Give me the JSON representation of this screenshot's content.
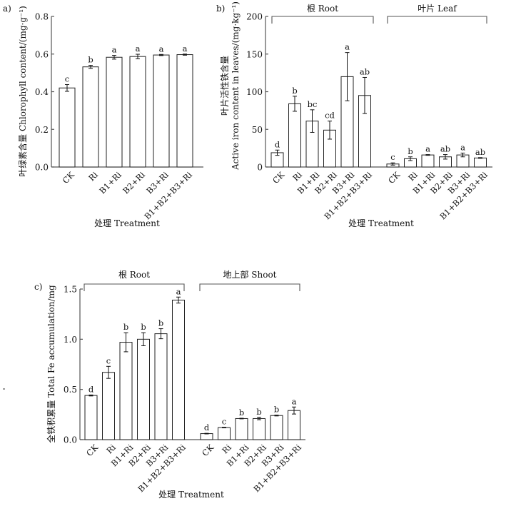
{
  "chart_data": [
    {
      "type": "bar",
      "panel_label": "a)",
      "title": "",
      "xlabel": "处理 Treatment",
      "ylabel": "叶绿素含量 Chlorophyll content/(mg·g⁻¹)",
      "ylim": [
        0,
        0.8
      ],
      "yticks": [
        "0.0",
        "0.2",
        "0.4",
        "0.6",
        "0.8"
      ],
      "ytick_values": [
        0,
        0.2,
        0.4,
        0.6,
        0.8
      ],
      "groups": [
        {
          "name": "",
          "categories": [
            "CK",
            "Ri",
            "B1+Ri",
            "B2+Ri",
            "B3+Ri",
            "B1+B2+B3+Ri"
          ],
          "values": [
            0.42,
            0.532,
            0.583,
            0.587,
            0.595,
            0.597
          ],
          "errors": [
            0.018,
            0.008,
            0.01,
            0.012,
            0.003,
            0.003
          ],
          "significance": [
            "c",
            "b",
            "a",
            "a",
            "a",
            "a"
          ]
        }
      ]
    },
    {
      "type": "bar",
      "panel_label": "b)",
      "title": "",
      "xlabel": "处理 Treatment",
      "ylabel_line1": "叶片活性铁含量",
      "ylabel_line2": "Active iron content in leaves/(mg·kg⁻¹)",
      "ylim": [
        0,
        200
      ],
      "yticks": [
        "0",
        "50",
        "100",
        "150",
        "200"
      ],
      "ytick_values": [
        0,
        50,
        100,
        150,
        200
      ],
      "groups": [
        {
          "name": "根 Root",
          "categories": [
            "CK",
            "Ri",
            "B1+Ri",
            "B2+Ri",
            "B3+Ri",
            "B1+B2+B3+Ri"
          ],
          "values": [
            19,
            84,
            61,
            49,
            120,
            95
          ],
          "errors": [
            3.5,
            10,
            15,
            12,
            32,
            24
          ],
          "significance": [
            "d",
            "b",
            "bc",
            "cd",
            "a",
            "ab"
          ]
        },
        {
          "name": "叶片 Leaf",
          "categories": [
            "CK",
            "Ri",
            "B1+Ri",
            "B2+Ri",
            "B3+Ri",
            "B1+B2+B3+Ri"
          ],
          "values": [
            4,
            11,
            16,
            13.5,
            16,
            12
          ],
          "errors": [
            1.5,
            2.5,
            0.5,
            3,
            2.5,
            0.5
          ],
          "significance": [
            "c",
            "b",
            "a",
            "ab",
            "a",
            "ab"
          ]
        }
      ]
    },
    {
      "type": "bar",
      "panel_label": "c)",
      "title": "",
      "xlabel": "处理 Treatment",
      "ylabel": "全铁积累量 Total Fe accumulation/mg",
      "ylim": [
        0,
        1.5
      ],
      "yticks": [
        "0.0",
        "0.5",
        "1.0",
        "1.5"
      ],
      "ytick_values": [
        0,
        0.5,
        1.0,
        1.5
      ],
      "groups": [
        {
          "name": "根 Root",
          "categories": [
            "CK",
            "Ri",
            "B1+Ri",
            "B2+Ri",
            "B3+Ri",
            "B1+B2+B3+Ri"
          ],
          "values": [
            0.44,
            0.67,
            0.97,
            1.0,
            1.055,
            1.39
          ],
          "errors": [
            0.005,
            0.06,
            0.095,
            0.065,
            0.05,
            0.03
          ],
          "significance": [
            "d",
            "c",
            "b",
            "b",
            "b",
            "a"
          ]
        },
        {
          "name": "地上部 Shoot",
          "categories": [
            "CK",
            "Ri",
            "B1+Ri",
            "B2+Ri",
            "B3+Ri",
            "B1+B2+B3+Ri"
          ],
          "values": [
            0.06,
            0.12,
            0.21,
            0.21,
            0.24,
            0.29
          ],
          "errors": [
            0.003,
            0.003,
            0.003,
            0.012,
            0.004,
            0.035
          ],
          "significance": [
            "d",
            "c",
            "b",
            "b",
            "b",
            "a"
          ]
        }
      ]
    }
  ]
}
